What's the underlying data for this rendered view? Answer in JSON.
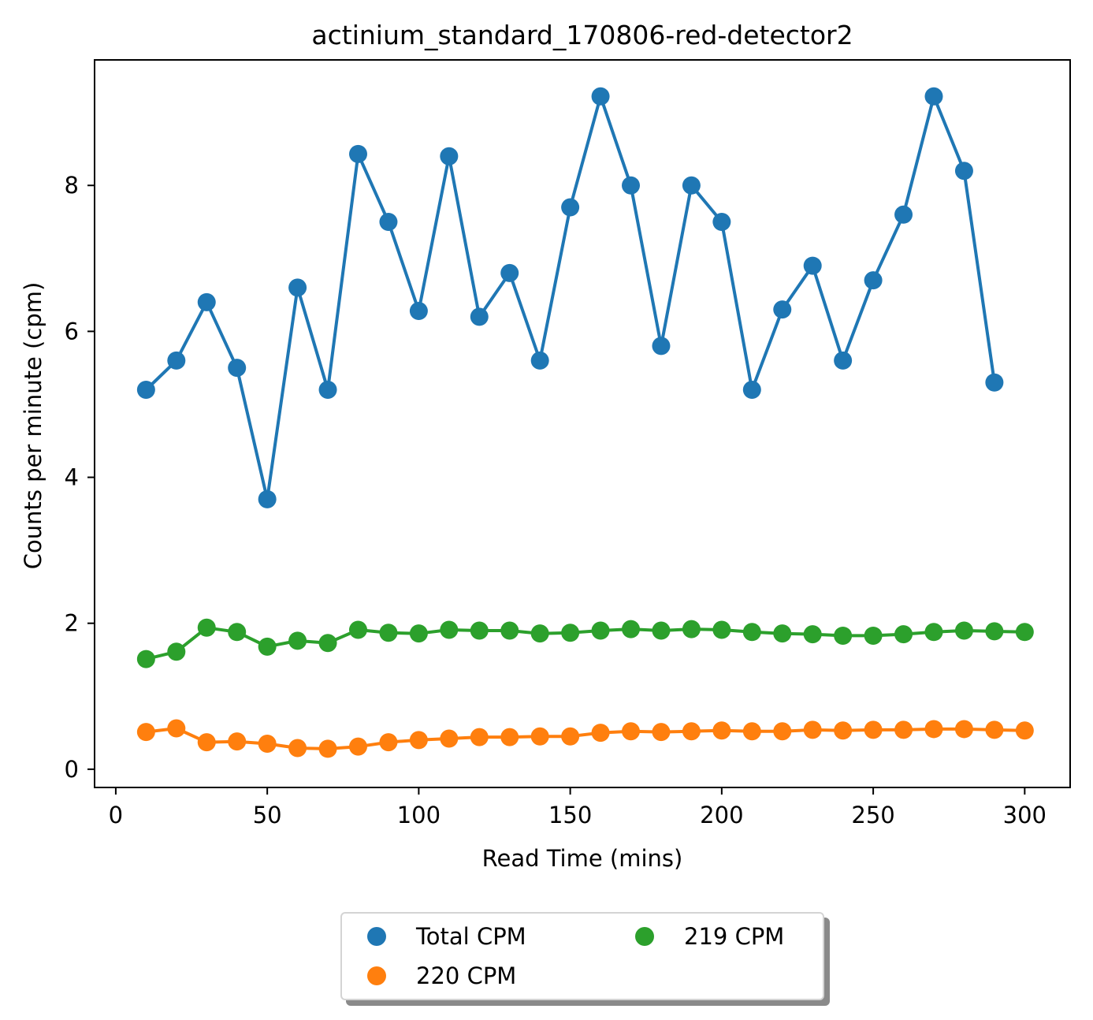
{
  "chart_data": {
    "type": "line",
    "title": "actinium_standard_170806-red-detector2",
    "xlabel": "Read Time (mins)",
    "ylabel": "Counts per minute (cpm)",
    "xlim": [
      -7,
      315
    ],
    "ylim": [
      -0.25,
      9.72
    ],
    "xticks": [
      0,
      50,
      100,
      150,
      200,
      250,
      300
    ],
    "yticks": [
      0,
      2,
      4,
      6,
      8
    ],
    "legend_position": "bottom-center",
    "grid": false,
    "series": [
      {
        "name": "Total CPM",
        "color": "#1f77b4",
        "x": [
          10,
          20,
          30,
          40,
          50,
          60,
          70,
          80,
          90,
          100,
          110,
          120,
          130,
          140,
          150,
          160,
          170,
          180,
          190,
          200,
          210,
          220,
          230,
          240,
          250,
          260,
          270,
          280,
          290
        ],
        "y": [
          5.2,
          5.6,
          6.4,
          5.5,
          3.7,
          6.6,
          5.2,
          8.43,
          7.5,
          6.28,
          8.4,
          6.2,
          6.8,
          5.6,
          7.7,
          9.22,
          8.0,
          5.8,
          8.0,
          7.5,
          5.2,
          6.3,
          6.9,
          5.6,
          6.7,
          7.6,
          9.22,
          8.2,
          5.3
        ]
      },
      {
        "name": "220 CPM",
        "color": "#ff7f0e",
        "x": [
          10,
          20,
          30,
          40,
          50,
          60,
          70,
          80,
          90,
          100,
          110,
          120,
          130,
          140,
          150,
          160,
          170,
          180,
          190,
          200,
          210,
          220,
          230,
          240,
          250,
          260,
          270,
          280,
          290,
          300
        ],
        "y": [
          0.51,
          0.56,
          0.37,
          0.38,
          0.35,
          0.29,
          0.28,
          0.31,
          0.37,
          0.4,
          0.42,
          0.44,
          0.44,
          0.45,
          0.45,
          0.5,
          0.52,
          0.51,
          0.52,
          0.53,
          0.52,
          0.52,
          0.54,
          0.53,
          0.54,
          0.54,
          0.55,
          0.55,
          0.54,
          0.53
        ]
      },
      {
        "name": "219 CPM",
        "color": "#2ca02c",
        "x": [
          10,
          20,
          30,
          40,
          50,
          60,
          70,
          80,
          90,
          100,
          110,
          120,
          130,
          140,
          150,
          160,
          170,
          180,
          190,
          200,
          210,
          220,
          230,
          240,
          250,
          260,
          270,
          280,
          290,
          300
        ],
        "y": [
          1.51,
          1.61,
          1.94,
          1.88,
          1.68,
          1.76,
          1.73,
          1.91,
          1.87,
          1.86,
          1.91,
          1.9,
          1.9,
          1.86,
          1.87,
          1.9,
          1.92,
          1.9,
          1.92,
          1.91,
          1.88,
          1.86,
          1.85,
          1.83,
          1.83,
          1.85,
          1.88,
          1.9,
          1.89,
          1.88
        ]
      }
    ]
  },
  "legend": {
    "entries": [
      {
        "label": "Total CPM",
        "color": "#1f77b4"
      },
      {
        "label": "220 CPM",
        "color": "#ff7f0e"
      },
      {
        "label": "219 CPM",
        "color": "#2ca02c"
      }
    ]
  }
}
